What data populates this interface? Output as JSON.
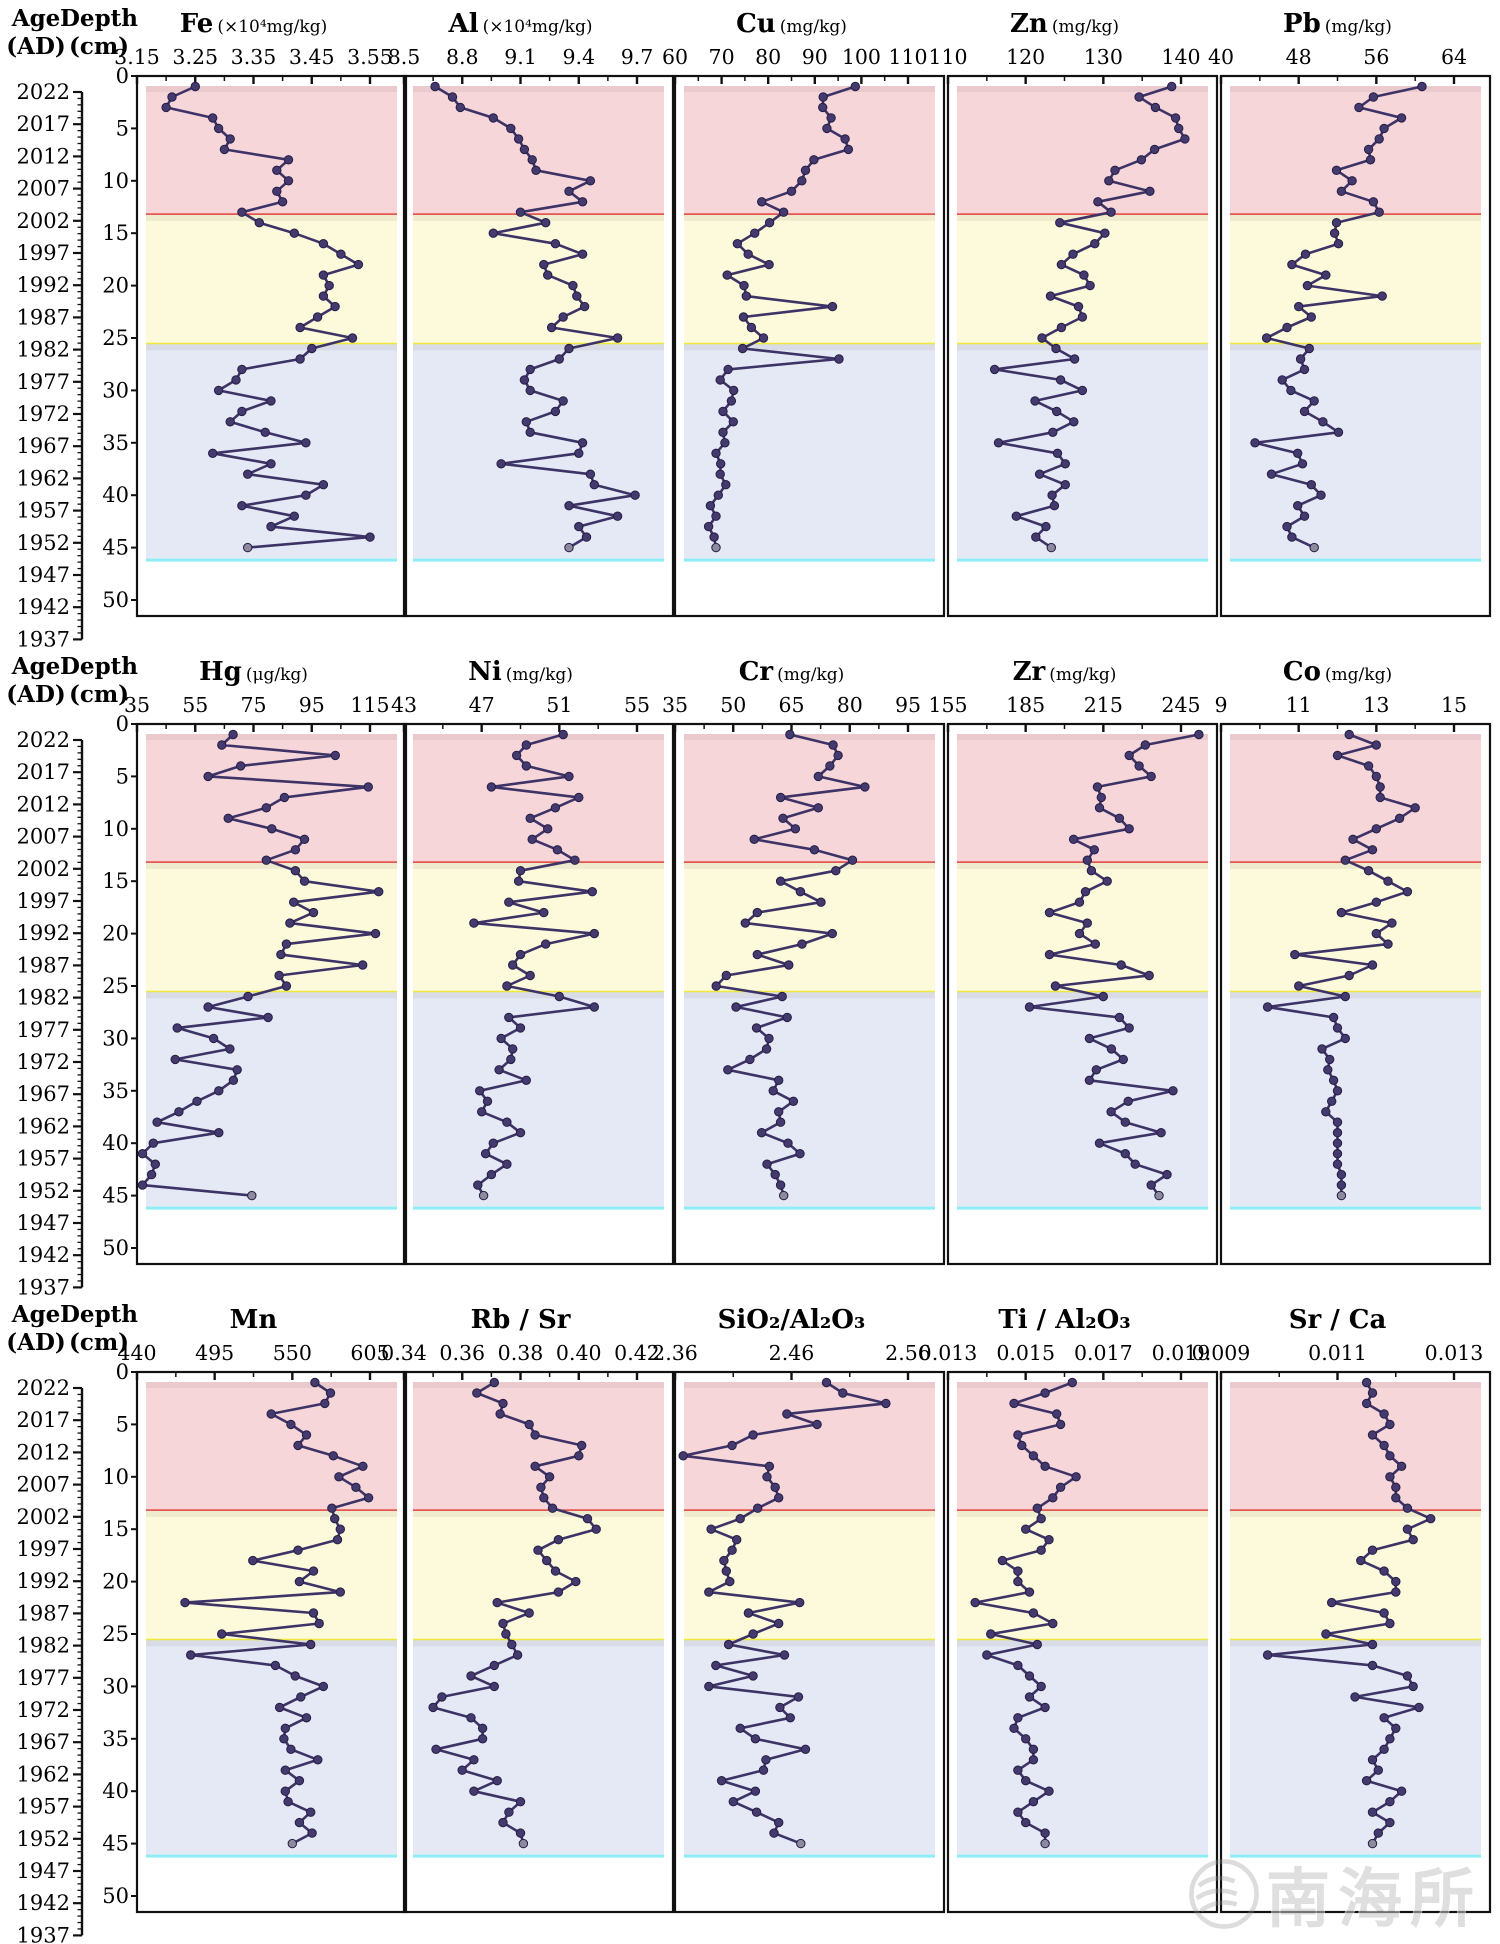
{
  "watermark": {
    "text": "南海所"
  },
  "age_axis": {
    "label_top": "Age",
    "label_bottom": "(AD)",
    "years": [
      2022,
      2017,
      2012,
      2007,
      2002,
      1997,
      1992,
      1987,
      1982,
      1977,
      1972,
      1967,
      1962,
      1957,
      1952,
      1947,
      1942,
      1937
    ]
  },
  "depth_axis": {
    "label_top": "Depth",
    "label_bottom": "(cm)",
    "ticks": [
      0,
      5,
      10,
      15,
      20,
      25,
      30,
      35,
      40,
      45,
      50
    ]
  },
  "colors": {
    "line": "#3e3366",
    "marker": "#453a6e",
    "marker_last": "#8e8a9e",
    "axis": "#111111",
    "zone_red": "#f7d6da",
    "zone_red_edge": "#e23c38",
    "zone_yellow": "#fcfadb",
    "zone_yellow_edge": "#efe93b",
    "zone_blue": "#e4e9f5",
    "zone_blue_edge": "#8deef5"
  },
  "chart_data": {
    "type": "line",
    "orientation": "vertical-depth-profile",
    "ylabel": "Depth (cm)",
    "ylabel2": "Age (AD)",
    "ylim": [
      0,
      50
    ],
    "grid": false,
    "zones": [
      {
        "name": "zone-upper",
        "from_cm": 0.6,
        "to_cm": 13.25,
        "fill": "zone_red",
        "edge": "zone_red_edge"
      },
      {
        "name": "zone-middle",
        "from_cm": 13.25,
        "to_cm": 25.6,
        "fill": "zone_yellow",
        "edge": "zone_yellow_edge"
      },
      {
        "name": "zone-lower",
        "from_cm": 25.6,
        "to_cm": 46.2,
        "fill": "zone_blue",
        "edge": "zone_blue_edge"
      }
    ],
    "depth_cm": [
      1,
      2,
      3,
      4,
      5,
      6,
      7,
      8,
      9,
      10,
      11,
      12,
      13,
      14,
      15,
      16,
      17,
      18,
      19,
      20,
      21,
      22,
      23,
      24,
      25,
      26,
      27,
      28,
      29,
      30,
      31,
      32,
      33,
      34,
      35,
      36,
      37,
      38,
      39,
      40,
      41,
      42,
      43,
      44,
      45
    ],
    "rows": [
      {
        "panels": [
          {
            "name": "Fe",
            "unit": "(×10⁴mg/kg)",
            "tick_labels": [
              "3.15",
              "3.25",
              "3.35",
              "3.45",
              "3.55"
            ],
            "values": [
              3.25,
              3.21,
              3.2,
              3.28,
              3.29,
              3.31,
              3.3,
              3.41,
              3.39,
              3.41,
              3.39,
              3.4,
              3.33,
              3.36,
              3.42,
              3.47,
              3.5,
              3.53,
              3.47,
              3.48,
              3.47,
              3.49,
              3.46,
              3.43,
              3.52,
              3.45,
              3.43,
              3.33,
              3.32,
              3.29,
              3.38,
              3.33,
              3.31,
              3.37,
              3.44,
              3.28,
              3.38,
              3.34,
              3.47,
              3.44,
              3.33,
              3.42,
              3.38,
              3.55,
              3.34
            ]
          },
          {
            "name": "Al",
            "unit": "(×10⁴mg/kg)",
            "tick_labels": [
              "8.5",
              "8.8",
              "9.1",
              "9.4",
              "9.7"
            ],
            "values": [
              8.66,
              8.75,
              8.79,
              8.96,
              9.05,
              9.09,
              9.12,
              9.16,
              9.18,
              9.46,
              9.35,
              9.42,
              9.1,
              9.23,
              8.96,
              9.28,
              9.42,
              9.22,
              9.24,
              9.37,
              9.39,
              9.43,
              9.32,
              9.26,
              9.6,
              9.35,
              9.3,
              9.15,
              9.12,
              9.15,
              9.32,
              9.28,
              9.13,
              9.15,
              9.42,
              9.4,
              9.0,
              9.46,
              9.48,
              9.69,
              9.35,
              9.6,
              9.4,
              9.44,
              9.35
            ]
          },
          {
            "name": "Cu",
            "unit": "(mg/kg)",
            "tick_labels": [
              "60",
              "70",
              "80",
              "90",
              "100",
              "110"
            ],
            "values": [
              98.7,
              91.8,
              91.7,
              93.5,
              92.6,
              96.5,
              97.2,
              89.8,
              88.0,
              87.2,
              85.0,
              78.6,
              83.3,
              80.3,
              77.1,
              73.4,
              75.7,
              80.2,
              71.2,
              74.8,
              75.3,
              93.8,
              74.7,
              76.4,
              79.0,
              74.5,
              95.2,
              71.4,
              69.7,
              72.6,
              72.1,
              70.3,
              72.5,
              70.3,
              70.7,
              68.8,
              69.8,
              69.7,
              70.9,
              69.3,
              67.6,
              68.8,
              67.2,
              68.4,
              68.8
            ]
          },
          {
            "name": "Zn",
            "unit": "(mg/kg)",
            "tick_labels": [
              "110",
              "120",
              "130",
              "140"
            ],
            "values": [
              138.8,
              134.6,
              136.7,
              139.3,
              139.7,
              140.5,
              136.6,
              134.9,
              131.5,
              130.7,
              136.0,
              129.3,
              131.0,
              124.4,
              130.2,
              128.9,
              126.1,
              124.6,
              127.5,
              128.3,
              123.2,
              126.8,
              127.3,
              124.6,
              122.1,
              123.9,
              126.3,
              116.0,
              124.5,
              127.3,
              121.2,
              124.0,
              126.2,
              123.5,
              116.5,
              124.1,
              125.1,
              121.8,
              125.1,
              123.4,
              123.7,
              118.8,
              122.6,
              121.3,
              123.3
            ]
          },
          {
            "name": "Pb",
            "unit": "(mg/kg)",
            "tick_labels": [
              "40",
              "48",
              "56",
              "64"
            ],
            "values": [
              60.7,
              55.7,
              54.2,
              58.6,
              56.8,
              56.3,
              55.2,
              55.4,
              51.9,
              53.5,
              52.4,
              55.7,
              56.3,
              51.9,
              51.7,
              52.1,
              48.7,
              47.3,
              50.8,
              48.9,
              56.6,
              48.0,
              49.3,
              46.8,
              44.7,
              49.1,
              48.2,
              48.6,
              46.3,
              47.2,
              49.6,
              48.6,
              50.5,
              52.1,
              43.5,
              47.9,
              48.4,
              45.2,
              49.3,
              50.3,
              47.9,
              48.6,
              46.8,
              47.3,
              49.6
            ]
          }
        ]
      },
      {
        "panels": [
          {
            "name": "Hg",
            "unit": "(μg/kg)",
            "tick_labels": [
              "35",
              "55",
              "75",
              "95",
              "115"
            ],
            "values": [
              68.0,
              64.1,
              103.1,
              70.6,
              59.4,
              114.4,
              85.6,
              79.4,
              66.3,
              81.3,
              92.5,
              89.4,
              79.4,
              89.4,
              92.5,
              118.0,
              88.8,
              95.6,
              87.5,
              116.9,
              86.3,
              84.4,
              112.5,
              83.8,
              86.3,
              73.1,
              59.4,
              80.0,
              48.8,
              61.3,
              66.9,
              48.1,
              69.4,
              68.1,
              63.1,
              55.6,
              49.4,
              41.9,
              63.1,
              40.6,
              36.9,
              41.3,
              40.0,
              36.9,
              74.4
            ]
          },
          {
            "name": "Ni",
            "unit": "(mg/kg)",
            "tick_labels": [
              "43",
              "47",
              "51",
              "55"
            ],
            "values": [
              51.2,
              49.3,
              48.8,
              49.3,
              51.5,
              47.5,
              52.0,
              50.8,
              49.5,
              50.4,
              49.6,
              50.9,
              51.8,
              49.0,
              48.9,
              52.7,
              48.4,
              50.2,
              46.6,
              52.8,
              50.3,
              49.0,
              48.6,
              49.5,
              48.3,
              51.0,
              52.8,
              48.4,
              49.0,
              48.0,
              48.6,
              48.5,
              47.9,
              49.3,
              46.9,
              47.3,
              47.0,
              48.3,
              49.0,
              47.6,
              47.2,
              48.3,
              47.5,
              46.8,
              47.1
            ]
          },
          {
            "name": "Cr",
            "unit": "(mg/kg)",
            "tick_labels": [
              "35",
              "50",
              "65",
              "80",
              "95"
            ],
            "values": [
              64.6,
              75.7,
              77.0,
              74.9,
              71.9,
              83.9,
              62.2,
              71.9,
              62.8,
              66.0,
              55.4,
              70.9,
              80.7,
              76.4,
              62.2,
              67.3,
              72.6,
              56.2,
              53.1,
              75.5,
              67.7,
              56.2,
              64.3,
              48.2,
              45.6,
              62.6,
              50.7,
              63.9,
              56.0,
              59.2,
              58.6,
              54.3,
              48.6,
              61.7,
              60.3,
              65.5,
              61.7,
              62.2,
              57.3,
              64.1,
              67.2,
              58.7,
              60.8,
              62.2,
              63.0
            ]
          },
          {
            "name": "Zr",
            "unit": "(mg/kg)",
            "tick_labels": [
              "155",
              "185",
              "215",
              "245"
            ],
            "values": [
              251.9,
              231.2,
              225.0,
              228.8,
              233.5,
              212.7,
              214.2,
              213.5,
              221.2,
              225.0,
              203.5,
              211.5,
              208.8,
              210.4,
              216.5,
              208.1,
              205.8,
              194.2,
              208.8,
              205.8,
              211.9,
              194.2,
              221.9,
              232.7,
              196.5,
              215.0,
              186.5,
              221.2,
              225.0,
              209.6,
              218.1,
              222.7,
              212.3,
              209.6,
              241.9,
              224.6,
              218.0,
              223.5,
              237.3,
              213.5,
              223.5,
              227.3,
              239.6,
              233.5,
              236.5
            ]
          },
          {
            "name": "Co",
            "unit": "(mg/kg)",
            "tick_labels": [
              "9",
              "11",
              "13",
              "15"
            ],
            "values": [
              12.3,
              13.0,
              12.0,
              12.8,
              13.0,
              13.1,
              13.1,
              14.0,
              13.6,
              13.0,
              12.4,
              12.9,
              12.2,
              12.8,
              13.3,
              13.8,
              13.0,
              12.1,
              13.4,
              13.0,
              13.3,
              10.9,
              12.9,
              12.3,
              11.0,
              12.2,
              10.2,
              11.9,
              12.0,
              12.2,
              11.6,
              11.8,
              11.75,
              11.9,
              12.0,
              11.85,
              11.7,
              12.0,
              12.0,
              12.0,
              12.0,
              12.0,
              12.1,
              12.1,
              12.1
            ]
          }
        ]
      },
      {
        "panels": [
          {
            "name": "Mn",
            "unit": "",
            "tick_labels": [
              "440",
              "495",
              "550",
              "605"
            ],
            "values": [
              566,
              577,
              573,
              535,
              549,
              560,
              554,
              579,
              600,
              583,
              595,
              604,
              578,
              580,
              584,
              582,
              554,
              522,
              565,
              555,
              584,
              474,
              565,
              569,
              500,
              563,
              478,
              538,
              552,
              572,
              556,
              541,
              560,
              545,
              544,
              549,
              568,
              545,
              555,
              545,
              547,
              563,
              555,
              564,
              550
            ]
          },
          {
            "name": "Rb / Sr",
            "unit": "",
            "tick_labels": [
              "0.34",
              "0.36",
              "0.38",
              "0.40",
              "0.42"
            ],
            "values": [
              0.371,
              0.365,
              0.374,
              0.373,
              0.383,
              0.385,
              0.401,
              0.4,
              0.385,
              0.39,
              0.387,
              0.388,
              0.391,
              0.403,
              0.406,
              0.393,
              0.386,
              0.389,
              0.392,
              0.399,
              0.393,
              0.372,
              0.383,
              0.374,
              0.375,
              0.377,
              0.379,
              0.371,
              0.363,
              0.371,
              0.353,
              0.35,
              0.363,
              0.367,
              0.367,
              0.351,
              0.364,
              0.36,
              0.372,
              0.364,
              0.38,
              0.376,
              0.374,
              0.38,
              0.381
            ]
          },
          {
            "name": "SiO₂/Al₂O₃",
            "unit": "",
            "tick_labels": [
              "2.36",
              "2.46",
              "2.56"
            ],
            "values": [
              2.49,
              2.504,
              2.541,
              2.456,
              2.482,
              2.427,
              2.409,
              2.367,
              2.441,
              2.439,
              2.446,
              2.449,
              2.431,
              2.416,
              2.391,
              2.413,
              2.409,
              2.402,
              2.404,
              2.407,
              2.389,
              2.467,
              2.423,
              2.449,
              2.427,
              2.406,
              2.454,
              2.395,
              2.427,
              2.389,
              2.466,
              2.45,
              2.459,
              2.416,
              2.429,
              2.472,
              2.438,
              2.436,
              2.4,
              2.429,
              2.41,
              2.43,
              2.449,
              2.445,
              2.468
            ]
          },
          {
            "name": "Ti / Al₂O₃",
            "unit": "",
            "tick_labels": [
              "0.013",
              "0.015",
              "0.017",
              "0.019"
            ],
            "values": [
              0.0162,
              0.0155,
              0.0147,
              0.0158,
              0.0159,
              0.0148,
              0.0149,
              0.0152,
              0.0155,
              0.0163,
              0.0159,
              0.0157,
              0.0153,
              0.0154,
              0.015,
              0.0156,
              0.0154,
              0.0144,
              0.0148,
              0.0148,
              0.0151,
              0.0137,
              0.0152,
              0.0157,
              0.0141,
              0.0153,
              0.014,
              0.0148,
              0.0151,
              0.0154,
              0.0151,
              0.0155,
              0.0148,
              0.0147,
              0.015,
              0.0152,
              0.0152,
              0.0148,
              0.015,
              0.0156,
              0.0152,
              0.0148,
              0.015,
              0.0155,
              0.0155
            ]
          },
          {
            "name": "Sr / Ca",
            "unit": "",
            "tick_labels": [
              "0.009",
              "0.011",
              "0.013"
            ],
            "values": [
              0.0115,
              0.0116,
              0.0115,
              0.0118,
              0.0119,
              0.0116,
              0.0118,
              0.0119,
              0.0121,
              0.0119,
              0.012,
              0.012,
              0.0122,
              0.0126,
              0.0122,
              0.0123,
              0.0116,
              0.0114,
              0.0118,
              0.012,
              0.012,
              0.0109,
              0.0118,
              0.0119,
              0.0108,
              0.0116,
              0.0098,
              0.0116,
              0.0122,
              0.0123,
              0.0113,
              0.0124,
              0.0118,
              0.012,
              0.0119,
              0.0118,
              0.0116,
              0.0117,
              0.0115,
              0.0121,
              0.0119,
              0.0116,
              0.0119,
              0.0117,
              0.0116
            ]
          }
        ]
      }
    ]
  }
}
